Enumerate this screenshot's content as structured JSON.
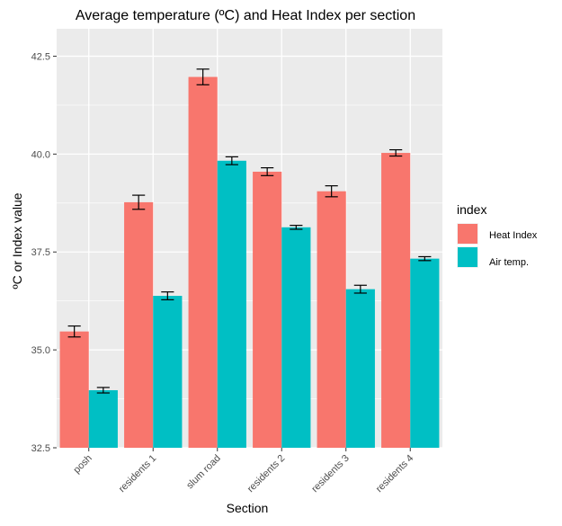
{
  "chart_data": {
    "type": "bar",
    "title": "Average temperature (ºC) and Heat Index per section",
    "xlabel": "Section",
    "ylabel": "ºC or Index value",
    "categories": [
      "posh",
      "residents 1",
      "slum road",
      "residents 2",
      "residents 3",
      "residents 4"
    ],
    "series": [
      {
        "name": "Heat Index",
        "color": "#F8766D",
        "values": [
          35.47,
          38.77,
          41.97,
          39.55,
          39.05,
          40.03
        ],
        "error": [
          0.14,
          0.18,
          0.2,
          0.1,
          0.14,
          0.08
        ]
      },
      {
        "name": "Air temp.",
        "color": "#00BFC4",
        "values": [
          33.97,
          36.38,
          39.83,
          38.13,
          36.55,
          37.33
        ],
        "error": [
          0.07,
          0.1,
          0.1,
          0.05,
          0.1,
          0.05
        ]
      }
    ],
    "ylim": [
      32.5,
      43.2
    ],
    "yticks": [
      "32.5",
      "35.0",
      "37.5",
      "40.0",
      "42.5"
    ],
    "grid": true,
    "panel_color": "#EBEBEB",
    "legend": {
      "title": "index",
      "position": "right"
    }
  }
}
